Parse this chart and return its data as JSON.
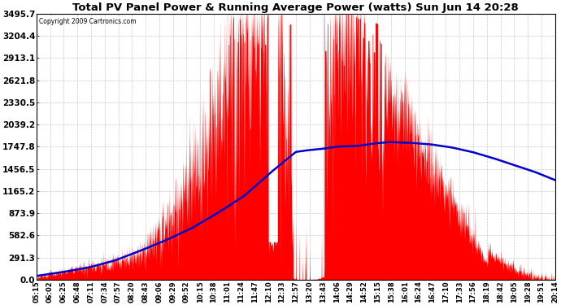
{
  "title": "Total PV Panel Power & Running Average Power (watts) Sun Jun 14 20:28",
  "copyright": "Copyright 2009 Cartronics.com",
  "background_color": "#ffffff",
  "plot_bg_color": "#ffffff",
  "grid_color": "#bbbbbb",
  "fill_color": "#ff0000",
  "line_color": "#0000cc",
  "y_ticks": [
    0.0,
    291.3,
    582.6,
    873.9,
    1165.2,
    1456.5,
    1747.8,
    2039.2,
    2330.5,
    2621.8,
    2913.1,
    3204.4,
    3495.7
  ],
  "x_labels": [
    "05:15",
    "06:02",
    "06:25",
    "06:48",
    "07:11",
    "07:34",
    "07:57",
    "08:20",
    "08:43",
    "09:06",
    "09:29",
    "09:52",
    "10:15",
    "10:38",
    "11:01",
    "11:24",
    "11:47",
    "12:10",
    "12:33",
    "12:57",
    "13:20",
    "13:43",
    "14:06",
    "14:29",
    "14:52",
    "15:15",
    "15:38",
    "16:01",
    "16:24",
    "16:47",
    "17:10",
    "17:33",
    "17:56",
    "18:19",
    "18:42",
    "19:05",
    "19:28",
    "19:51",
    "20:14"
  ],
  "y_max": 3495.7,
  "y_min": 0.0
}
